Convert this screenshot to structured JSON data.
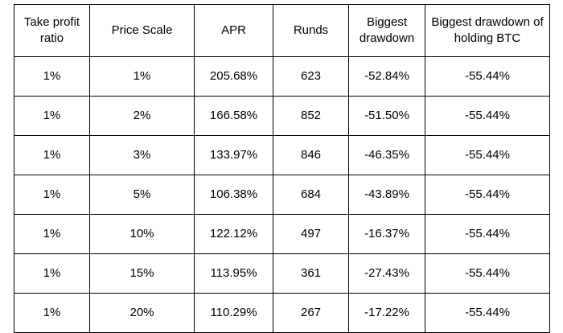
{
  "table": {
    "headers": [
      "Take profit ratio",
      "Price Scale",
      "APR",
      "Runds",
      "Biggest drawdown",
      "Biggest drawdown of holding BTC"
    ],
    "rows": [
      [
        "1%",
        "1%",
        "205.68%",
        "623",
        "-52.84%",
        "-55.44%"
      ],
      [
        "1%",
        "2%",
        "166.58%",
        "852",
        "-51.50%",
        "-55.44%"
      ],
      [
        "1%",
        "3%",
        "133.97%",
        "846",
        "-46.35%",
        "-55.44%"
      ],
      [
        "1%",
        "5%",
        "106.38%",
        "684",
        "-43.89%",
        "-55.44%"
      ],
      [
        "1%",
        "10%",
        "122.12%",
        "497",
        "-16.37%",
        "-55.44%"
      ],
      [
        "1%",
        "15%",
        "113.95%",
        "361",
        "-27.43%",
        "-55.44%"
      ],
      [
        "1%",
        "20%",
        "110.29%",
        "267",
        "-17.22%",
        "-55.44%"
      ]
    ]
  }
}
